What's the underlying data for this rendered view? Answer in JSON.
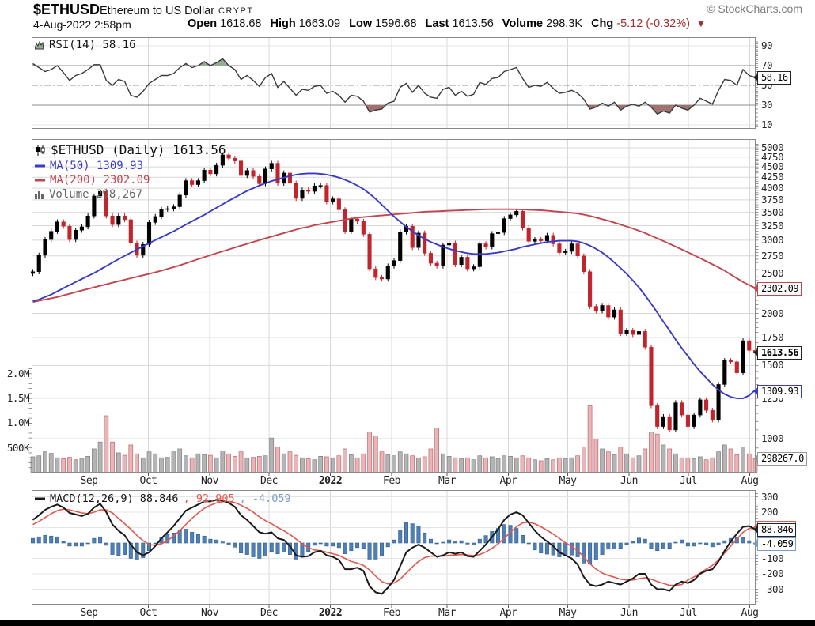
{
  "header": {
    "symbol": "$ETHUSD",
    "name": "Ethereum to US Dollar",
    "exchange": "CRYPT",
    "copyright": "© StockCharts.com",
    "datetime": "4-Aug-2022 2:58pm",
    "quote": {
      "open_label": "Open",
      "open": "1618.68",
      "high_label": "High",
      "high": "1663.09",
      "low_label": "Low",
      "low": "1596.68",
      "last_label": "Last",
      "last": "1613.56",
      "volume_label": "Volume",
      "volume": "298.3K",
      "chg_label": "Chg",
      "chg": "-5.12 (-0.32%)",
      "chg_triangle": "▼"
    }
  },
  "rsi_panel": {
    "legend": "RSI(14) 58.16",
    "value_label": "58.16",
    "axis_ticks": [
      90,
      70,
      50,
      30,
      10
    ]
  },
  "price_panel": {
    "legend_symbol": "$ETHUSD (Daily) 1613.56",
    "legend_ma50": "MA(50) 1309.93",
    "legend_ma200": "MA(200) 2302.09",
    "legend_volume": "Volume 298,267",
    "axis_ticks": [
      5000,
      4750,
      4500,
      4250,
      4000,
      3750,
      3500,
      3250,
      3000,
      2750,
      2500,
      2250,
      2000,
      1750,
      1500,
      1250,
      1000
    ],
    "volume_axis_ticks": [
      "2.0M",
      "1.5M",
      "1.0M",
      "500K"
    ],
    "label_ma200": "2302.09",
    "label_last": "1613.56",
    "label_ma50": "1309.93",
    "label_volume": "298267.0"
  },
  "macd_panel": {
    "legend_name": "MACD(12,26,9) 88.846",
    "legend_signal": ", 92.905",
    "legend_hist": ", -4.059",
    "axis_ticks": [
      300,
      200,
      100,
      -100,
      -200,
      -300
    ],
    "label_macd": "88.846",
    "label_signal": "92.905",
    "label_hist": "-4.059"
  },
  "x_axis": {
    "months": [
      "Sep",
      "Oct",
      "Nov",
      "Dec",
      "2022",
      "Feb",
      "Mar",
      "Apr",
      "May",
      "Jun",
      "Jul",
      "Aug"
    ]
  },
  "colors": {
    "candle_up": "#000000",
    "candle_down": "#c0242c",
    "ma50": "#3a3ac8",
    "ma200": "#c2454f",
    "vol_up": "#b4b4b4",
    "vol_up_border": "#7f7f7f",
    "vol_down": "#e7b6b9",
    "vol_down_border": "#c4666d",
    "rsi_line": "#3a3a3a",
    "rsi_over_fill": "#94ac94",
    "rsi_under_fill": "#a17272",
    "macd_line": "#1a1a1a",
    "macd_signal": "#e4574f",
    "hist_fill": "#4f7fb5",
    "hist_border": "#2f5f95",
    "grid": "#d8d8d8",
    "grid_light": "#e4e4e4",
    "grid_strong": "#8f8f8f",
    "panel_border": "#8a8a8a",
    "tick": "#777777",
    "chg_red": "#a03030"
  },
  "chart_data": {
    "type": "candlestick",
    "title": "$ETHUSD Ethereum to US Dollar (Daily)",
    "x_range": "4-Aug-2021 to 4-Aug-2022",
    "x_month_labels": [
      "Sep",
      "Oct",
      "Nov",
      "Dec",
      "2022",
      "Feb",
      "Mar",
      "Apr",
      "May",
      "Jun",
      "Jul",
      "Aug"
    ],
    "price_scale": "log",
    "price_ylim": [
      850,
      5250
    ],
    "price_axis_step": 250,
    "closes": [
      2520,
      2760,
      3010,
      3150,
      3320,
      3240,
      3010,
      3170,
      3230,
      3430,
      3830,
      3930,
      3430,
      3270,
      3430,
      3360,
      2950,
      2760,
      2930,
      3310,
      3420,
      3560,
      3570,
      3610,
      3850,
      4170,
      4080,
      4170,
      4420,
      4330,
      4540,
      4810,
      4720,
      4650,
      4290,
      4410,
      4270,
      4100,
      4450,
      4590,
      4110,
      4350,
      4110,
      3780,
      3960,
      3930,
      4050,
      4060,
      3710,
      3770,
      3550,
      3150,
      3370,
      3330,
      3100,
      2560,
      2440,
      2420,
      2600,
      2680,
      3140,
      3240,
      2880,
      3120,
      2790,
      2640,
      2600,
      2920,
      2950,
      2620,
      2730,
      2560,
      2590,
      2940,
      2890,
      3110,
      3130,
      3380,
      3450,
      3520,
      3210,
      2980,
      3010,
      2990,
      3080,
      2940,
      2800,
      2820,
      2940,
      2750,
      2520,
      2080,
      2030,
      2090,
      1960,
      2040,
      1790,
      1820,
      1780,
      1810,
      1660,
      1200,
      1070,
      1130,
      1050,
      1220,
      1140,
      1070,
      1140,
      1240,
      1170,
      1110,
      1350,
      1540,
      1530,
      1440,
      1720,
      1630,
      1613.56
    ],
    "ma50": [
      2140,
      2160,
      2190,
      2220,
      2260,
      2300,
      2340,
      2380,
      2420,
      2460,
      2500,
      2550,
      2600,
      2650,
      2700,
      2750,
      2800,
      2850,
      2900,
      2950,
      3000,
      3050,
      3100,
      3150,
      3210,
      3270,
      3330,
      3390,
      3450,
      3520,
      3590,
      3660,
      3730,
      3800,
      3870,
      3940,
      4000,
      4060,
      4110,
      4160,
      4200,
      4240,
      4280,
      4310,
      4330,
      4340,
      4340,
      4330,
      4310,
      4280,
      4240,
      4190,
      4130,
      4060,
      3980,
      3880,
      3770,
      3650,
      3530,
      3420,
      3320,
      3230,
      3150,
      3080,
      3020,
      2970,
      2930,
      2890,
      2860,
      2830,
      2810,
      2790,
      2780,
      2780,
      2780,
      2790,
      2800,
      2820,
      2840,
      2860,
      2890,
      2910,
      2930,
      2950,
      2970,
      2980,
      2990,
      2990,
      2990,
      2980,
      2950,
      2910,
      2860,
      2800,
      2730,
      2650,
      2570,
      2490,
      2400,
      2310,
      2210,
      2110,
      2010,
      1910,
      1820,
      1730,
      1650,
      1580,
      1510,
      1450,
      1400,
      1350,
      1310,
      1280,
      1260,
      1250,
      1250,
      1270,
      1309.93
    ],
    "ma200": [
      2130,
      2145,
      2160,
      2175,
      2190,
      2210,
      2230,
      2250,
      2270,
      2290,
      2310,
      2330,
      2350,
      2370,
      2390,
      2410,
      2430,
      2450,
      2470,
      2490,
      2510,
      2535,
      2560,
      2585,
      2610,
      2640,
      2670,
      2700,
      2730,
      2760,
      2790,
      2820,
      2850,
      2880,
      2910,
      2940,
      2970,
      3000,
      3030,
      3060,
      3090,
      3120,
      3150,
      3180,
      3210,
      3230,
      3260,
      3280,
      3300,
      3320,
      3340,
      3360,
      3380,
      3395,
      3410,
      3420,
      3430,
      3440,
      3450,
      3460,
      3470,
      3480,
      3490,
      3500,
      3510,
      3515,
      3520,
      3525,
      3530,
      3535,
      3540,
      3545,
      3550,
      3555,
      3558,
      3560,
      3560,
      3560,
      3560,
      3558,
      3555,
      3550,
      3545,
      3540,
      3530,
      3520,
      3510,
      3500,
      3490,
      3475,
      3455,
      3430,
      3400,
      3370,
      3340,
      3305,
      3270,
      3235,
      3200,
      3160,
      3120,
      3075,
      3030,
      2985,
      2940,
      2895,
      2850,
      2805,
      2760,
      2715,
      2670,
      2625,
      2580,
      2535,
      2480,
      2430,
      2380,
      2340,
      2302.09
    ],
    "volume_k": [
      320,
      340,
      420,
      390,
      300,
      280,
      310,
      260,
      290,
      330,
      480,
      620,
      1150,
      620,
      400,
      350,
      560,
      380,
      300,
      420,
      380,
      300,
      310,
      420,
      480,
      340,
      300,
      380,
      360,
      350,
      300,
      440,
      380,
      330,
      420,
      300,
      310,
      330,
      340,
      700,
      520,
      380,
      420,
      350,
      300,
      280,
      260,
      330,
      320,
      300,
      340,
      480,
      360,
      300,
      380,
      820,
      740,
      420,
      360,
      340,
      420,
      380,
      340,
      300,
      320,
      480,
      900,
      380,
      330,
      300,
      280,
      300,
      260,
      340,
      300,
      320,
      280,
      340,
      330,
      300,
      340,
      300,
      260,
      240,
      280,
      260,
      300,
      280,
      300,
      340,
      520,
      1350,
      680,
      480,
      420,
      360,
      520,
      380,
      300,
      340,
      480,
      820,
      780,
      560,
      480,
      380,
      300,
      300,
      280,
      320,
      260,
      300,
      420,
      560,
      480,
      360,
      520,
      380,
      298
    ],
    "volume_axis_k": [
      2000,
      1500,
      1000,
      500
    ],
    "rsi": {
      "period": 14,
      "last": 58.16,
      "overbought": 70,
      "oversold": 30,
      "midline": 50,
      "values": [
        72,
        68,
        64,
        66,
        70,
        63,
        55,
        60,
        62,
        66,
        71,
        71,
        55,
        50,
        56,
        54,
        40,
        38,
        44,
        52,
        56,
        60,
        60,
        62,
        68,
        72,
        68,
        70,
        74,
        70,
        73,
        77,
        70,
        66,
        56,
        60,
        55,
        49,
        58,
        62,
        48,
        54,
        47,
        40,
        46,
        45,
        49,
        50,
        42,
        44,
        40,
        33,
        40,
        39,
        34,
        23,
        25,
        26,
        32,
        34,
        48,
        52,
        43,
        50,
        42,
        38,
        37,
        46,
        48,
        40,
        44,
        39,
        41,
        53,
        51,
        57,
        58,
        64,
        66,
        68,
        57,
        48,
        50,
        49,
        53,
        47,
        42,
        43,
        45,
        42,
        36,
        26,
        28,
        32,
        29,
        33,
        25,
        29,
        31,
        29,
        33,
        28,
        21,
        24,
        22,
        30,
        27,
        25,
        30,
        37,
        34,
        31,
        45,
        56,
        55,
        50,
        66,
        60,
        58.16
      ]
    },
    "macd": {
      "params": "12,26,9",
      "last_macd": 88.846,
      "last_signal": 92.905,
      "last_hist": -4.059,
      "ylim": [
        -400,
        340
      ],
      "macd": [
        150,
        180,
        215,
        235,
        250,
        230,
        195,
        185,
        175,
        190,
        230,
        255,
        200,
        120,
        80,
        50,
        -10,
        -60,
        -80,
        -60,
        -20,
        30,
        70,
        110,
        160,
        210,
        230,
        250,
        270,
        270,
        280,
        275,
        260,
        235,
        180,
        150,
        110,
        70,
        60,
        70,
        30,
        20,
        -20,
        -80,
        -90,
        -85,
        -60,
        -50,
        -80,
        -90,
        -110,
        -170,
        -170,
        -160,
        -180,
        -280,
        -320,
        -330,
        -290,
        -240,
        -150,
        -60,
        -30,
        -10,
        -30,
        -60,
        -90,
        -80,
        -60,
        -70,
        -60,
        -85,
        -90,
        -50,
        -10,
        40,
        90,
        150,
        185,
        200,
        180,
        130,
        80,
        40,
        10,
        -20,
        -60,
        -80,
        -100,
        -140,
        -220,
        -270,
        -280,
        -270,
        -250,
        -260,
        -270,
        -250,
        -230,
        -200,
        -200,
        -270,
        -300,
        -300,
        -310,
        -270,
        -250,
        -260,
        -240,
        -200,
        -180,
        -170,
        -120,
        -50,
        10,
        60,
        105,
        110,
        88.846
      ],
      "signal": [
        120,
        140,
        165,
        190,
        210,
        220,
        215,
        205,
        195,
        190,
        200,
        215,
        215,
        195,
        160,
        125,
        90,
        50,
        15,
        -10,
        -15,
        -5,
        15,
        45,
        80,
        120,
        160,
        195,
        225,
        245,
        260,
        268,
        268,
        262,
        245,
        225,
        200,
        170,
        145,
        125,
        100,
        80,
        55,
        25,
        -5,
        -30,
        -45,
        -50,
        -60,
        -70,
        -80,
        -100,
        -120,
        -130,
        -145,
        -175,
        -215,
        -250,
        -265,
        -260,
        -235,
        -195,
        -155,
        -120,
        -95,
        -85,
        -85,
        -85,
        -80,
        -78,
        -75,
        -78,
        -82,
        -75,
        -58,
        -35,
        -5,
        30,
        70,
        105,
        130,
        135,
        125,
        105,
        82,
        58,
        30,
        2,
        -22,
        -50,
        -90,
        -135,
        -170,
        -195,
        -210,
        -222,
        -235,
        -240,
        -240,
        -232,
        -225,
        -235,
        -250,
        -262,
        -275,
        -275,
        -270,
        -240,
        -220,
        -195,
        -170,
        -145,
        -110,
        -65,
        -20,
        25,
        70,
        95,
        92.905
      ]
    }
  }
}
